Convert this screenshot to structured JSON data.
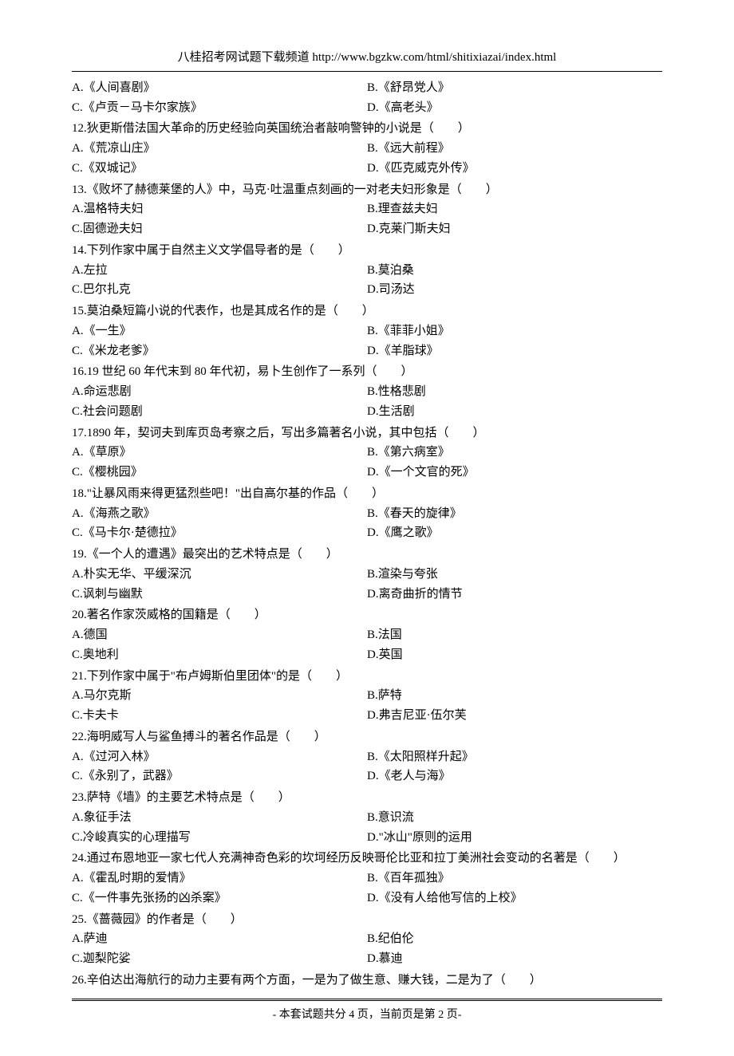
{
  "header": {
    "text": "八桂招考网试题下载频道 http://www.bgzkw.com/html/shitixiazai/index.html"
  },
  "questions": [
    {
      "stem": "",
      "optA": "A.《人间喜剧》",
      "optB": "B.《舒昂党人》",
      "optC": "C.《卢贡－马卡尔家族》",
      "optD": "D.《高老头》"
    },
    {
      "stem": "12.狄更斯借法国大革命的历史经验向英国统治者敲响警钟的小说是（　　）",
      "optA": "A.《荒凉山庄》",
      "optB": "B.《远大前程》",
      "optC": "C.《双城记》",
      "optD": "D.《匹克威克外传》"
    },
    {
      "stem": "13.《败坏了赫德莱堡的人》中，马克·吐温重点刻画的一对老夫妇形象是（　　）",
      "optA": "A.温格特夫妇",
      "optB": "B.理查兹夫妇",
      "optC": "C.固德逊夫妇",
      "optD": "D.克莱门斯夫妇"
    },
    {
      "stem": "14.下列作家中属于自然主义文学倡导者的是（　　）",
      "optA": "A.左拉",
      "optB": "B.莫泊桑",
      "optC": "C.巴尔扎克",
      "optD": "D.司汤达"
    },
    {
      "stem": "15.莫泊桑短篇小说的代表作，也是其成名作的是（　　）",
      "optA": "A.《一生》",
      "optB": "B.《菲菲小姐》",
      "optC": "C.《米龙老爹》",
      "optD": "D.《羊脂球》"
    },
    {
      "stem": "16.19 世纪 60 年代末到 80 年代初，易卜生创作了一系列（　　）",
      "optA": "A.命运悲剧",
      "optB": "B.性格悲剧",
      "optC": "C.社会问题剧",
      "optD": "D.生活剧"
    },
    {
      "stem": "17.1890 年，契诃夫到库页岛考察之后，写出多篇著名小说，其中包括（　　）",
      "optA": "A.《草原》",
      "optB": "B.《第六病室》",
      "optC": "C.《樱桃园》",
      "optD": "D.《一个文官的死》"
    },
    {
      "stem": "18.\"让暴风雨来得更猛烈些吧！\"出自高尔基的作品（　　）",
      "optA": "A.《海燕之歌》",
      "optB": "B.《春天的旋律》",
      "optC": "C.《马卡尔·楚德拉》",
      "optD": "D.《鹰之歌》"
    },
    {
      "stem": "19.《一个人的遭遇》最突出的艺术特点是（　　）",
      "optA": "A.朴实无华、平缓深沉",
      "optB": "B.渲染与夸张",
      "optC": "C.讽刺与幽默",
      "optD": "D.离奇曲折的情节"
    },
    {
      "stem": "20.著名作家茨威格的国籍是（　　）",
      "optA": "A.德国",
      "optB": "B.法国",
      "optC": "C.奥地利",
      "optD": "D.英国"
    },
    {
      "stem": "21.下列作家中属于\"布卢姆斯伯里团体\"的是（　　）",
      "optA": "A.马尔克斯",
      "optB": "B.萨特",
      "optC": "C.卡夫卡",
      "optD": "D.弗吉尼亚·伍尔芙"
    },
    {
      "stem": "22.海明威写人与鲨鱼搏斗的著名作品是（　　）",
      "optA": "A.《过河入林》",
      "optB": "B.《太阳照样升起》",
      "optC": "C.《永别了，武器》",
      "optD": "D.《老人与海》"
    },
    {
      "stem": "23.萨特《墙》的主要艺术特点是（　　）",
      "optA": "A.象征手法",
      "optB": "B.意识流",
      "optC": "C.冷峻真实的心理描写",
      "optD": "D.\"冰山\"原则的运用"
    },
    {
      "stem": "24.通过布恩地亚一家七代人充满神奇色彩的坎坷经历反映哥伦比亚和拉丁美洲社会变动的名著是（　　）",
      "optA": "A.《霍乱时期的爱情》",
      "optB": "B.《百年孤独》",
      "optC": "C.《一件事先张扬的凶杀案》",
      "optD": "D.《没有人给他写信的上校》"
    },
    {
      "stem": "25.《蔷薇园》的作者是（　　）",
      "optA": "A.萨迪",
      "optB": "B.纪伯伦",
      "optC": "C.迦梨陀娑",
      "optD": "D.慕迪"
    },
    {
      "stem": "26.辛伯达出海航行的动力主要有两个方面，一是为了做生意、赚大钱，二是为了（　　）",
      "optA": "",
      "optB": "",
      "optC": "",
      "optD": ""
    }
  ],
  "footer": {
    "text": "- 本套试题共分 4 页，当前页是第 2 页-"
  }
}
